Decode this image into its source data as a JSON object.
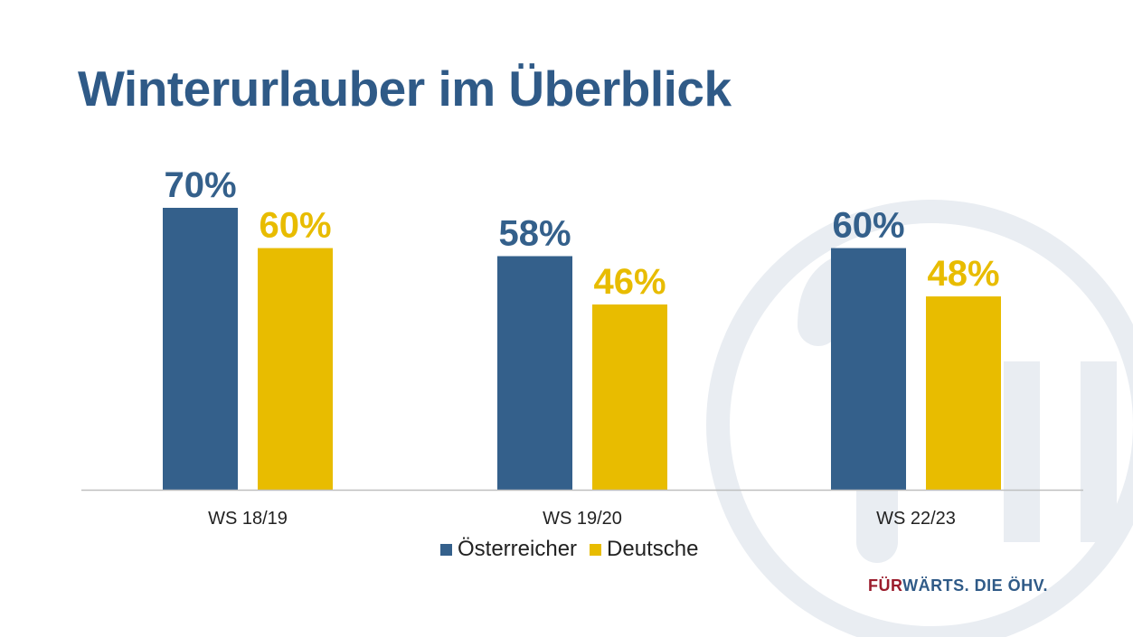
{
  "title": "Winterurlauber im Überblick",
  "brand": {
    "part1": "FÜR",
    "part2": "WÄRTS. DIE ÖHV.",
    "color1": "#9b1c2c",
    "color2": "#2f5a87"
  },
  "legend": {
    "items": [
      {
        "label": "Österreicher",
        "color": "#34608b"
      },
      {
        "label": "Deutsche",
        "color": "#e8bc00"
      }
    ]
  },
  "colors": {
    "title": "#2f5a87",
    "series_a": "#34608b",
    "series_b": "#e8bc00",
    "axis": "#bfbfbf",
    "watermark": "#e9edf2"
  },
  "chart_data": {
    "type": "bar",
    "categories": [
      "WS 18/19",
      "WS 19/20",
      "WS 22/23"
    ],
    "series": [
      {
        "name": "Österreicher",
        "values": [
          70,
          58,
          60
        ],
        "labels": [
          "70%",
          "58%",
          "60%"
        ]
      },
      {
        "name": "Deutsche",
        "values": [
          60,
          46,
          48
        ],
        "labels": [
          "60%",
          "46%",
          "48%"
        ]
      }
    ],
    "ylim": [
      0,
      70
    ],
    "grid": false,
    "legend_position": "bottom"
  }
}
